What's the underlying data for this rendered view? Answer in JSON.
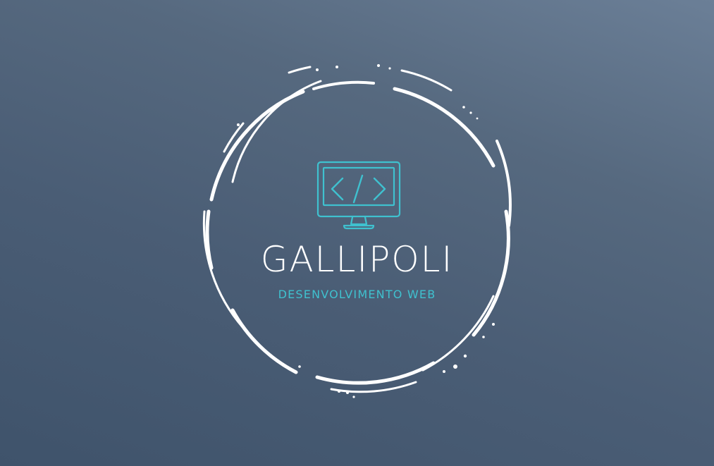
{
  "logo": {
    "brand_name": "GALLIPOLI",
    "tagline": "DESENVOLVIMENTO WEB",
    "icon": "monitor-code-icon"
  },
  "colors": {
    "background_light": "#6b7f97",
    "background_dark": "#3f536b",
    "ring": "#ffffff",
    "accent": "#3fc1cf",
    "brand_text": "#ffffff"
  }
}
